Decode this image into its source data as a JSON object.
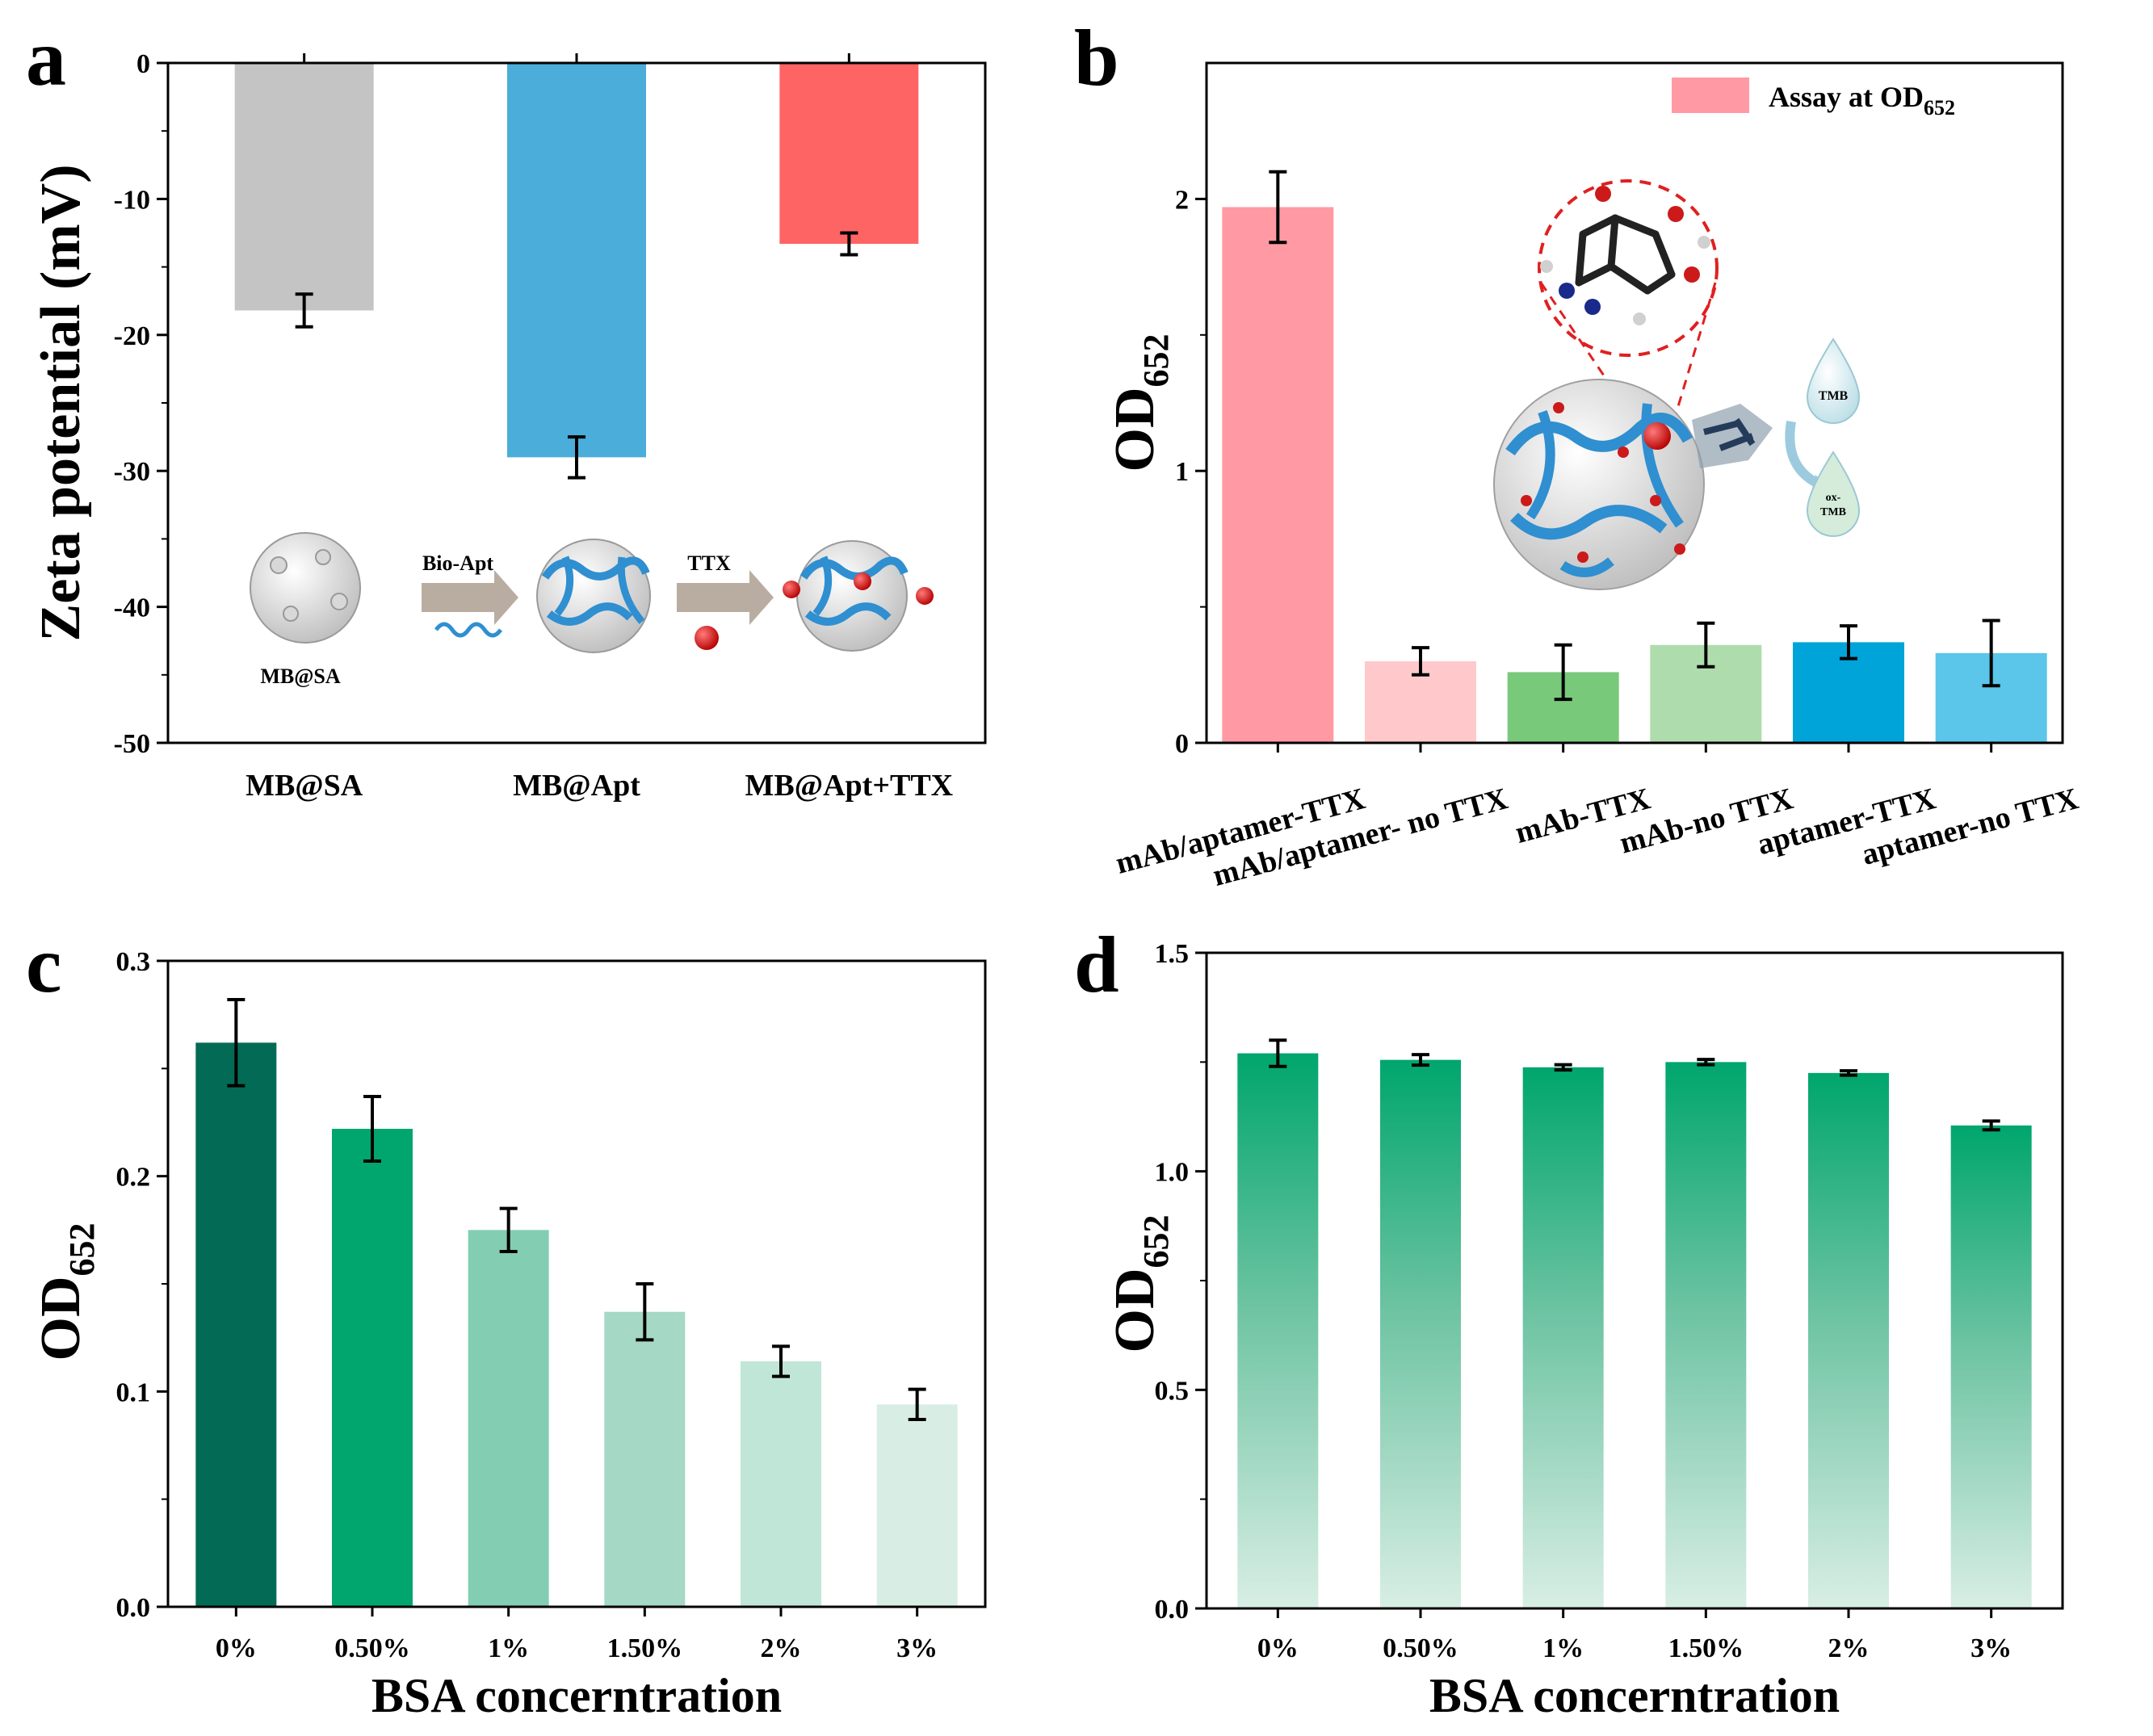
{
  "chart_data": [
    {
      "panel": "a",
      "type": "bar",
      "title": "",
      "ylabel": "Zeta potential (mV)",
      "xlabel": "",
      "ylim": [
        -50,
        0
      ],
      "yticks": [
        0,
        -10,
        -20,
        -30,
        -40,
        -50
      ],
      "categories": [
        "MB@SA",
        "MB@Apt",
        "MB@Apt+TTX"
      ],
      "values": [
        -18.2,
        -29.0,
        -13.3
      ],
      "errors": [
        1.2,
        1.5,
        0.8
      ],
      "colors": [
        "#c4c4c4",
        "#4badda",
        "#ff6464"
      ],
      "inset": {
        "label_left": "MB@SA",
        "arrow1": "Bio-Apt",
        "arrow2": "TTX"
      }
    },
    {
      "panel": "b",
      "type": "bar",
      "title": "",
      "ylabel_main": "OD",
      "ylabel_sub": "652",
      "xlabel": "",
      "ylim": [
        0,
        2.5
      ],
      "yticks": [
        0,
        1,
        2
      ],
      "categories": [
        "mAb/aptamer-TTX",
        "mAb/aptamer- no TTX",
        "mAb-TTX",
        "mAb-no TTX",
        "aptamer-TTX",
        "aptamer-no TTX"
      ],
      "values": [
        1.97,
        0.3,
        0.26,
        0.36,
        0.37,
        0.33
      ],
      "errors": [
        0.13,
        0.05,
        0.1,
        0.08,
        0.06,
        0.12
      ],
      "colors": [
        "#ff9aa4",
        "#ffc9cc",
        "#79c97b",
        "#afdcad",
        "#00a4d8",
        "#5bc5ea"
      ],
      "legend": {
        "text": "Assay at OD",
        "sub": "652",
        "color": "#ff9aa4",
        "position": "top-right"
      },
      "inset": {
        "drop1": "TMB",
        "drop2_line1": "ox-",
        "drop2_line2": "TMB"
      }
    },
    {
      "panel": "c",
      "type": "bar",
      "title": "",
      "ylabel_main": "OD",
      "ylabel_sub": "652",
      "xlabel": "BSA concerntration",
      "ylim": [
        0,
        0.3
      ],
      "yticks": [
        "0.0",
        "0.1",
        "0.2",
        "0.3"
      ],
      "categories": [
        "0%",
        "0.50%",
        "1%",
        "1.50%",
        "2%",
        "3%"
      ],
      "values": [
        0.262,
        0.222,
        0.175,
        0.137,
        0.114,
        0.094
      ],
      "errors": [
        0.02,
        0.015,
        0.01,
        0.013,
        0.007,
        0.007
      ],
      "colors": [
        "#036b55",
        "#00a66d",
        "#83cdb3",
        "#a5d8c5",
        "#bfe6d7",
        "#d8eee4"
      ]
    },
    {
      "panel": "d",
      "type": "bar",
      "title": "",
      "ylabel_main": "OD",
      "ylabel_sub": "652",
      "xlabel": "BSA concerntration",
      "ylim": [
        0,
        1.5
      ],
      "yticks": [
        "0.0",
        "0.5",
        "1.0",
        "1.5"
      ],
      "categories": [
        "0%",
        "0.50%",
        "1%",
        "1.50%",
        "2%",
        "3%"
      ],
      "values": [
        1.27,
        1.255,
        1.238,
        1.25,
        1.225,
        1.105
      ],
      "errors": [
        0.03,
        0.012,
        0.006,
        0.006,
        0.005,
        0.01
      ],
      "gradient": [
        "#00a66d",
        "#d8eee4"
      ]
    }
  ],
  "panel_letters": [
    "a",
    "b",
    "c",
    "d"
  ]
}
